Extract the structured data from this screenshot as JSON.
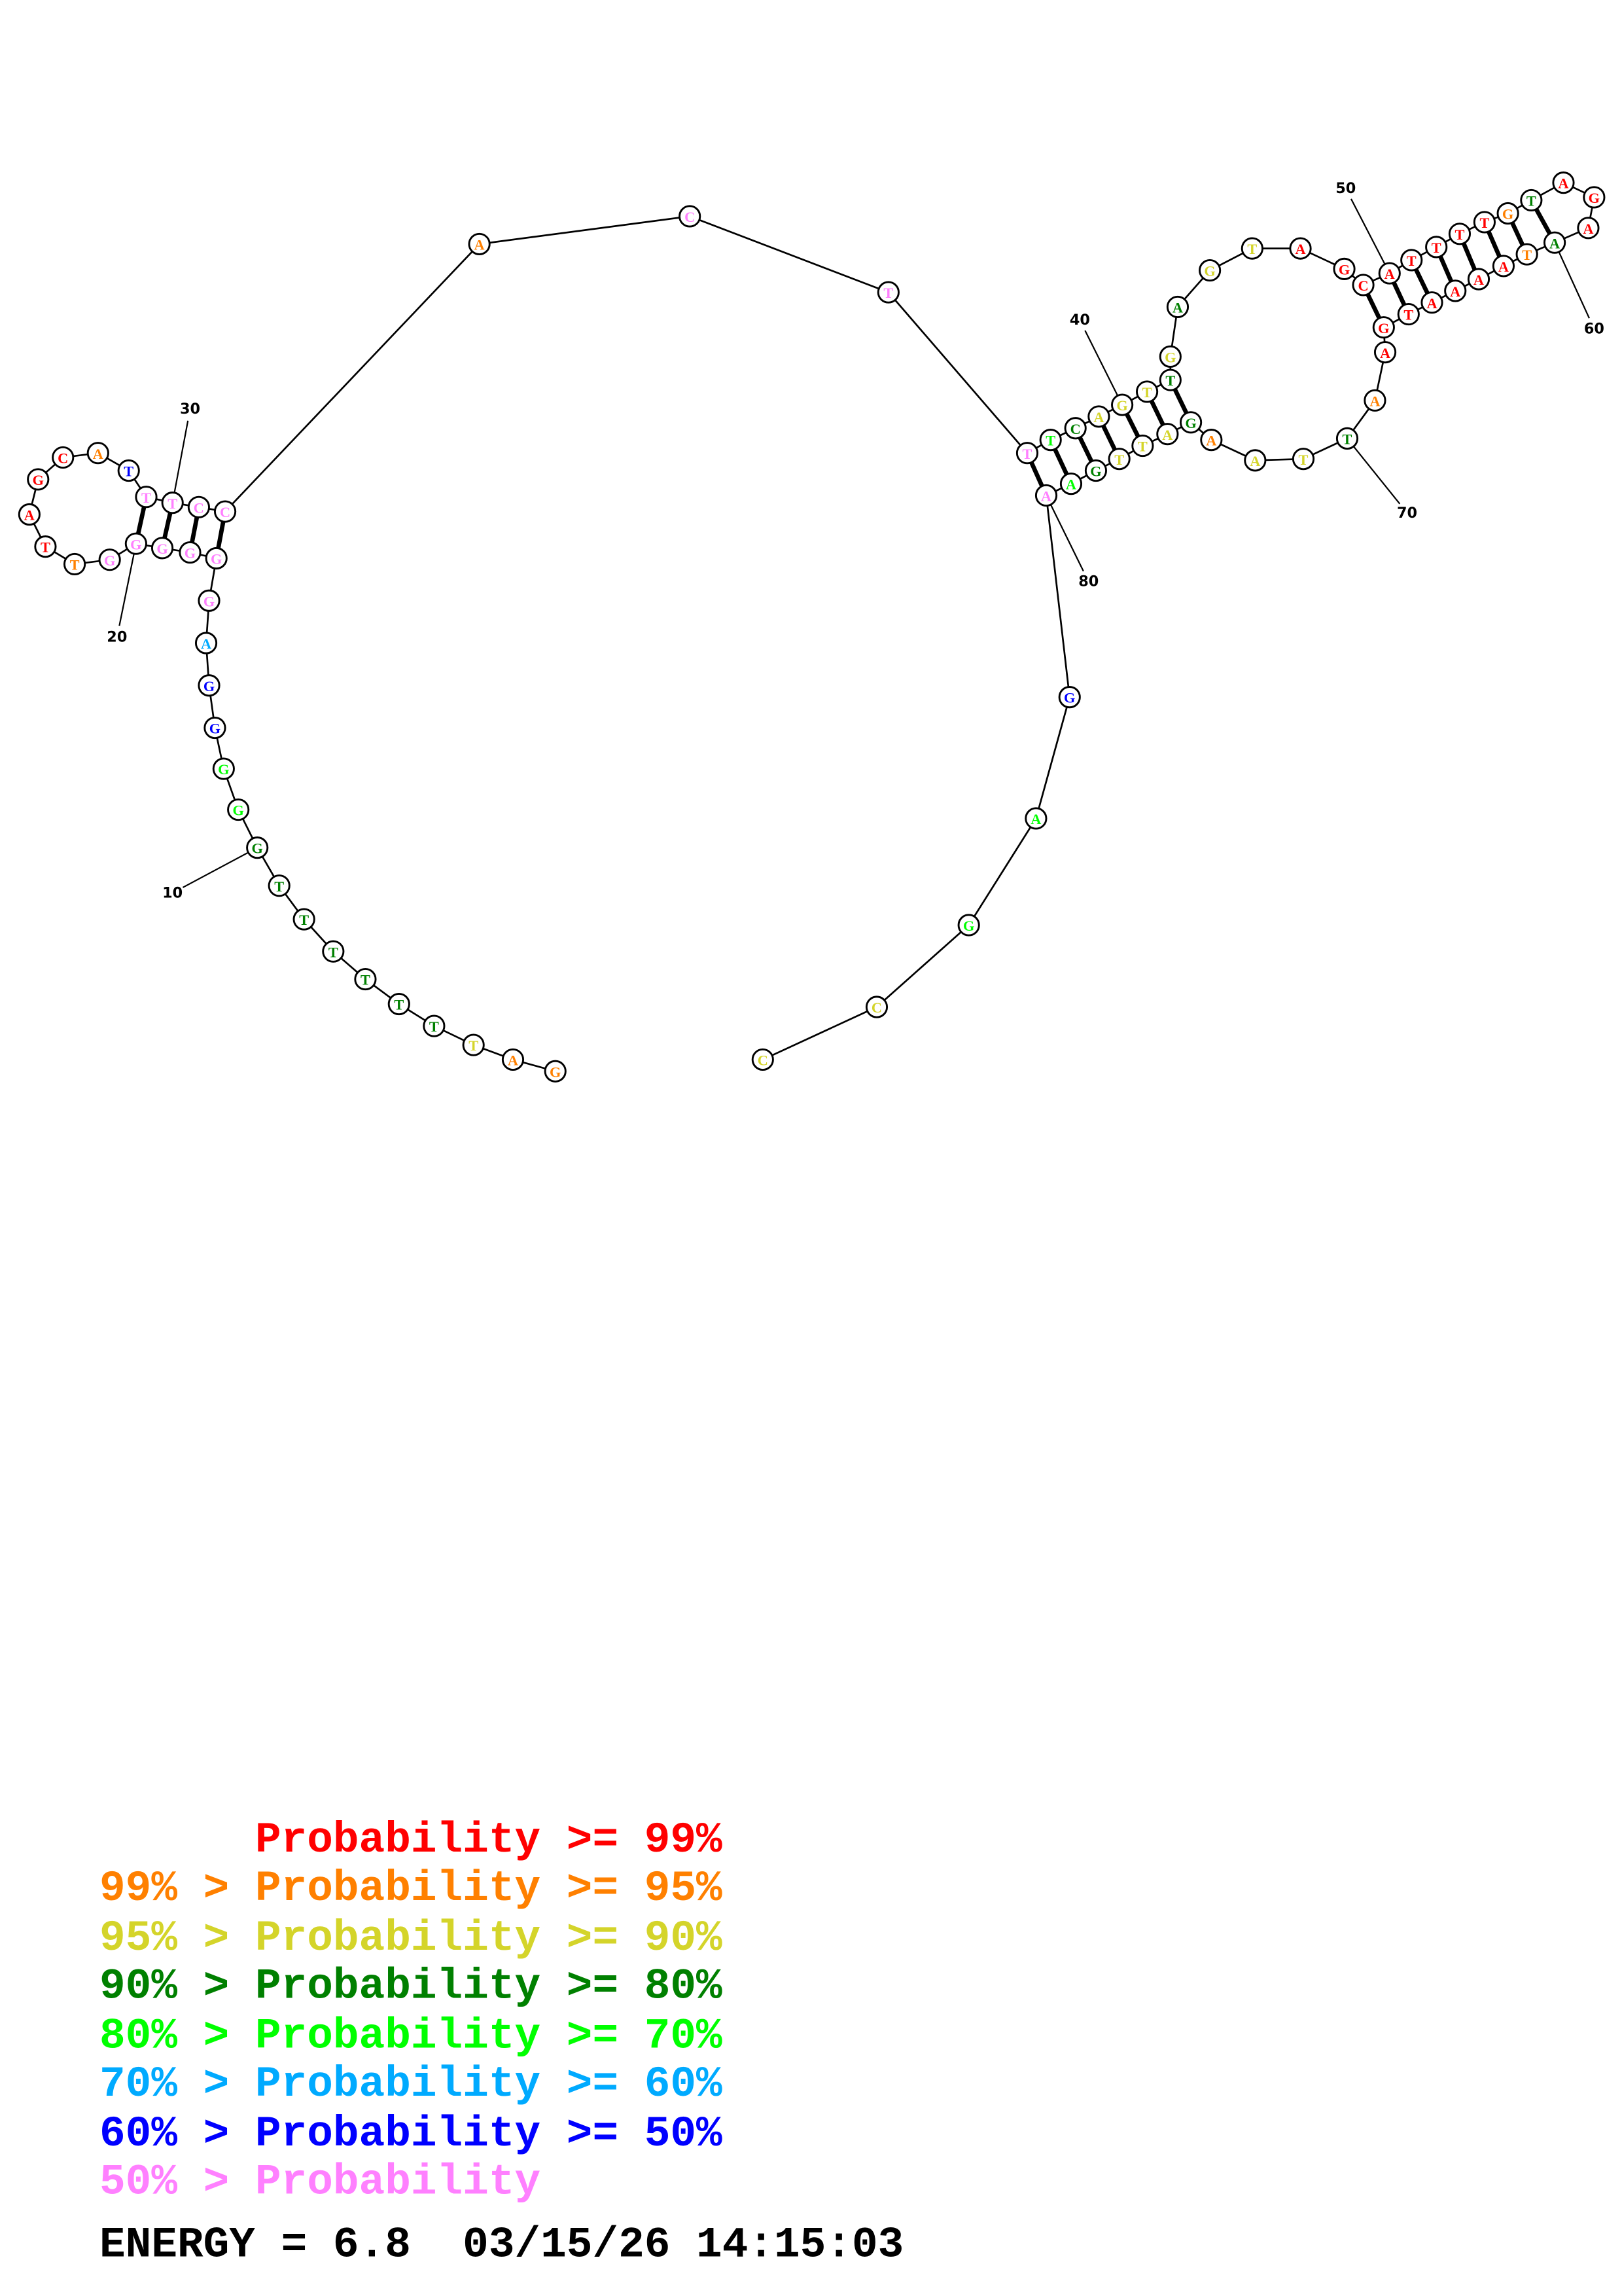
{
  "colors": {
    "p99": "#ff0000",
    "p95": "#ff8000",
    "p90": "#d4d42a",
    "p80": "#008000",
    "p70": "#00ff00",
    "p60": "#00aaff",
    "p50": "#0000ff",
    "lt50": "#ff80ff"
  },
  "sequence": [
    {
      "n": 1,
      "base": "G",
      "cls": "p95"
    },
    {
      "n": 2,
      "base": "A",
      "cls": "p95"
    },
    {
      "n": 3,
      "base": "T",
      "cls": "p90"
    },
    {
      "n": 4,
      "base": "T",
      "cls": "p80"
    },
    {
      "n": 5,
      "base": "T",
      "cls": "p80"
    },
    {
      "n": 6,
      "base": "T",
      "cls": "p80"
    },
    {
      "n": 7,
      "base": "T",
      "cls": "p80"
    },
    {
      "n": 8,
      "base": "T",
      "cls": "p80"
    },
    {
      "n": 9,
      "base": "T",
      "cls": "p80"
    },
    {
      "n": 10,
      "base": "G",
      "cls": "p80"
    },
    {
      "n": 11,
      "base": "G",
      "cls": "p70"
    },
    {
      "n": 12,
      "base": "G",
      "cls": "p70"
    },
    {
      "n": 13,
      "base": "G",
      "cls": "p50"
    },
    {
      "n": 14,
      "base": "G",
      "cls": "p50"
    },
    {
      "n": 15,
      "base": "A",
      "cls": "p60"
    },
    {
      "n": 16,
      "base": "G",
      "cls": "lt50"
    },
    {
      "n": 17,
      "base": "G",
      "cls": "lt50"
    },
    {
      "n": 18,
      "base": "G",
      "cls": "lt50"
    },
    {
      "n": 19,
      "base": "G",
      "cls": "lt50"
    },
    {
      "n": 20,
      "base": "G",
      "cls": "lt50"
    },
    {
      "n": 21,
      "base": "G",
      "cls": "lt50"
    },
    {
      "n": 22,
      "base": "T",
      "cls": "p95"
    },
    {
      "n": 23,
      "base": "T",
      "cls": "p99"
    },
    {
      "n": 24,
      "base": "A",
      "cls": "p99"
    },
    {
      "n": 25,
      "base": "G",
      "cls": "p99"
    },
    {
      "n": 26,
      "base": "C",
      "cls": "p99"
    },
    {
      "n": 27,
      "base": "A",
      "cls": "p95"
    },
    {
      "n": 28,
      "base": "T",
      "cls": "p50"
    },
    {
      "n": 29,
      "base": "T",
      "cls": "lt50"
    },
    {
      "n": 30,
      "base": "T",
      "cls": "lt50"
    },
    {
      "n": 31,
      "base": "C",
      "cls": "lt50"
    },
    {
      "n": 32,
      "base": "C",
      "cls": "lt50"
    },
    {
      "n": 33,
      "base": "A",
      "cls": "p95"
    },
    {
      "n": 34,
      "base": "C",
      "cls": "lt50"
    },
    {
      "n": 35,
      "base": "T",
      "cls": "lt50"
    },
    {
      "n": 36,
      "base": "T",
      "cls": "lt50"
    },
    {
      "n": 37,
      "base": "T",
      "cls": "p70"
    },
    {
      "n": 38,
      "base": "C",
      "cls": "p80"
    },
    {
      "n": 39,
      "base": "A",
      "cls": "p90"
    },
    {
      "n": 40,
      "base": "G",
      "cls": "p90"
    },
    {
      "n": 41,
      "base": "T",
      "cls": "p90"
    },
    {
      "n": 42,
      "base": "T",
      "cls": "p80"
    },
    {
      "n": 43,
      "base": "G",
      "cls": "p90"
    },
    {
      "n": 44,
      "base": "A",
      "cls": "p80"
    },
    {
      "n": 45,
      "base": "G",
      "cls": "p90"
    },
    {
      "n": 46,
      "base": "T",
      "cls": "p90"
    },
    {
      "n": 47,
      "base": "A",
      "cls": "p99"
    },
    {
      "n": 48,
      "base": "G",
      "cls": "p99"
    },
    {
      "n": 49,
      "base": "C",
      "cls": "p99"
    },
    {
      "n": 50,
      "base": "A",
      "cls": "p99"
    },
    {
      "n": 51,
      "base": "T",
      "cls": "p99"
    },
    {
      "n": 52,
      "base": "T",
      "cls": "p99"
    },
    {
      "n": 53,
      "base": "T",
      "cls": "p99"
    },
    {
      "n": 54,
      "base": "T",
      "cls": "p99"
    },
    {
      "n": 55,
      "base": "G",
      "cls": "p95"
    },
    {
      "n": 56,
      "base": "T",
      "cls": "p80"
    },
    {
      "n": 57,
      "base": "A",
      "cls": "p99"
    },
    {
      "n": 58,
      "base": "G",
      "cls": "p99"
    },
    {
      "n": 59,
      "base": "A",
      "cls": "p99"
    },
    {
      "n": 60,
      "base": "A",
      "cls": "p80"
    },
    {
      "n": 61,
      "base": "T",
      "cls": "p95"
    },
    {
      "n": 62,
      "base": "A",
      "cls": "p99"
    },
    {
      "n": 63,
      "base": "A",
      "cls": "p99"
    },
    {
      "n": 64,
      "base": "A",
      "cls": "p99"
    },
    {
      "n": 65,
      "base": "A",
      "cls": "p99"
    },
    {
      "n": 66,
      "base": "T",
      "cls": "p99"
    },
    {
      "n": 67,
      "base": "G",
      "cls": "p99"
    },
    {
      "n": 68,
      "base": "A",
      "cls": "p99"
    },
    {
      "n": 69,
      "base": "A",
      "cls": "p95"
    },
    {
      "n": 70,
      "base": "T",
      "cls": "p80"
    },
    {
      "n": 71,
      "base": "T",
      "cls": "p90"
    },
    {
      "n": 72,
      "base": "A",
      "cls": "p90"
    },
    {
      "n": 73,
      "base": "A",
      "cls": "p95"
    },
    {
      "n": 74,
      "base": "G",
      "cls": "p80"
    },
    {
      "n": 75,
      "base": "A",
      "cls": "p90"
    },
    {
      "n": 76,
      "base": "T",
      "cls": "p90"
    },
    {
      "n": 77,
      "base": "T",
      "cls": "p90"
    },
    {
      "n": 78,
      "base": "G",
      "cls": "p80"
    },
    {
      "n": 79,
      "base": "A",
      "cls": "p70"
    },
    {
      "n": 80,
      "base": "A",
      "cls": "lt50"
    },
    {
      "n": 81,
      "base": "G",
      "cls": "p50"
    },
    {
      "n": 82,
      "base": "A",
      "cls": "p70"
    },
    {
      "n": 83,
      "base": "G",
      "cls": "p70"
    },
    {
      "n": 84,
      "base": "C",
      "cls": "p90"
    },
    {
      "n": 85,
      "base": "C",
      "cls": "p90"
    }
  ],
  "pairs": [
    [
      17,
      32
    ],
    [
      18,
      31
    ],
    [
      19,
      30
    ],
    [
      20,
      29
    ],
    [
      36,
      80
    ],
    [
      37,
      79
    ],
    [
      38,
      78
    ],
    [
      39,
      77
    ],
    [
      40,
      76
    ],
    [
      41,
      75
    ],
    [
      42,
      74
    ],
    [
      49,
      67
    ],
    [
      50,
      66
    ],
    [
      51,
      65
    ],
    [
      52,
      64
    ],
    [
      53,
      63
    ],
    [
      54,
      62
    ],
    [
      55,
      61
    ],
    [
      56,
      60
    ]
  ],
  "position_labels": [
    "10",
    "20",
    "30",
    "40",
    "50",
    "60",
    "70",
    "80"
  ],
  "legend": [
    {
      "cls": "p99",
      "text": "      Probability >= 99%"
    },
    {
      "cls": "p95",
      "text": "99% > Probability >= 95%"
    },
    {
      "cls": "p90",
      "text": "95% > Probability >= 90%"
    },
    {
      "cls": "p80",
      "text": "90% > Probability >= 80%"
    },
    {
      "cls": "p70",
      "text": "80% > Probability >= 70%"
    },
    {
      "cls": "p60",
      "text": "70% > Probability >= 60%"
    },
    {
      "cls": "p50",
      "text": "60% > Probability >= 50%"
    },
    {
      "cls": "lt50",
      "text": "50% > Probability"
    }
  ],
  "energy_line": "ENERGY = 6.8  03/15/26 14:15:03"
}
